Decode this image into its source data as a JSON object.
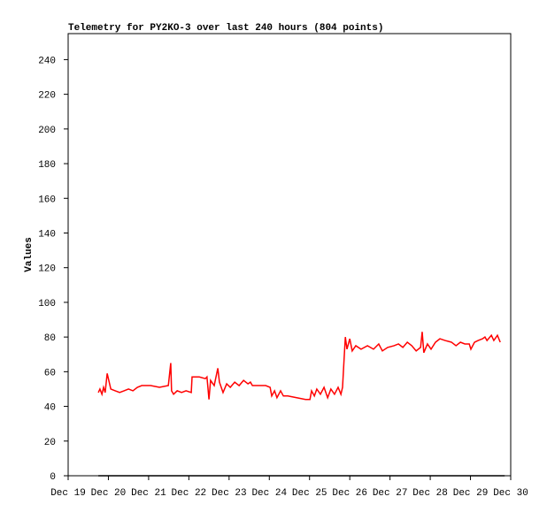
{
  "chart_data": {
    "type": "line",
    "title": "Telemetry for PY2KO-3 over last 240 hours (804 points)",
    "y_label": "Values",
    "xlim": [
      0,
      11
    ],
    "xticks": [
      {
        "value": 0,
        "label": "Dec 19"
      },
      {
        "value": 1,
        "label": "Dec 20"
      },
      {
        "value": 2,
        "label": "Dec 21"
      },
      {
        "value": 3,
        "label": "Dec 22"
      },
      {
        "value": 4,
        "label": "Dec 23"
      },
      {
        "value": 5,
        "label": "Dec 24"
      },
      {
        "value": 6,
        "label": "Dec 25"
      },
      {
        "value": 7,
        "label": "Dec 26"
      },
      {
        "value": 8,
        "label": "Dec 27"
      },
      {
        "value": 9,
        "label": "Dec 28"
      },
      {
        "value": 10,
        "label": "Dec 29"
      },
      {
        "value": 11,
        "label": "Dec 30"
      }
    ],
    "ylim": [
      0,
      255
    ],
    "yticks": [
      0,
      20,
      40,
      60,
      80,
      100,
      120,
      140,
      160,
      180,
      200,
      220,
      240
    ],
    "grid": false,
    "series": [
      {
        "color": "#ff0000",
        "x": [
          0.75,
          0.79,
          0.84,
          0.88,
          0.92,
          0.97,
          1.06,
          1.17,
          1.28,
          1.39,
          1.5,
          1.61,
          1.72,
          1.83,
          2.05,
          2.27,
          2.49,
          2.55,
          2.57,
          2.62,
          2.71,
          2.82,
          2.93,
          3.06,
          3.08,
          3.26,
          3.41,
          3.45,
          3.5,
          3.54,
          3.63,
          3.72,
          3.76,
          3.85,
          3.94,
          4.03,
          4.14,
          4.25,
          4.36,
          4.47,
          4.53,
          4.58,
          4.69,
          4.91,
          5.02,
          5.06,
          5.13,
          5.19,
          5.28,
          5.35,
          5.46,
          5.68,
          5.9,
          6.01,
          6.05,
          6.12,
          6.18,
          6.27,
          6.36,
          6.45,
          6.53,
          6.62,
          6.71,
          6.78,
          6.82,
          6.86,
          6.89,
          6.93,
          7.0,
          7.06,
          7.15,
          7.28,
          7.44,
          7.59,
          7.72,
          7.81,
          7.94,
          8.1,
          8.21,
          8.32,
          8.43,
          8.54,
          8.65,
          8.76,
          8.8,
          8.84,
          8.93,
          9.02,
          9.13,
          9.24,
          9.37,
          9.53,
          9.64,
          9.75,
          9.86,
          9.97,
          10.01,
          10.1,
          10.19,
          10.3,
          10.36,
          10.41,
          10.52,
          10.58,
          10.67,
          10.74
        ],
        "values": [
          48,
          50,
          47,
          51,
          48,
          59,
          50,
          49,
          48,
          49,
          50,
          49,
          51,
          52,
          52,
          51,
          52,
          65,
          49,
          47,
          49,
          48,
          49,
          48,
          57,
          57,
          56,
          57,
          44,
          55,
          52,
          62,
          54,
          48,
          53,
          51,
          54,
          52,
          55,
          53,
          54,
          52,
          52,
          52,
          51,
          46,
          49,
          45,
          49,
          46,
          46,
          45,
          44,
          44,
          49,
          46,
          50,
          47,
          51,
          45,
          50,
          47,
          51,
          47,
          51,
          68,
          80,
          73,
          79,
          72,
          75,
          73,
          75,
          73,
          76,
          72,
          74,
          75,
          76,
          74,
          77,
          75,
          72,
          74,
          83,
          71,
          76,
          73,
          77,
          79,
          78,
          77,
          75,
          77,
          76,
          76,
          73,
          77,
          78,
          79,
          80,
          78,
          81,
          78,
          81,
          77
        ]
      },
      {
        "color": "#000000",
        "x": [
          0.75,
          10.85
        ],
        "values": [
          0,
          0
        ]
      }
    ]
  }
}
